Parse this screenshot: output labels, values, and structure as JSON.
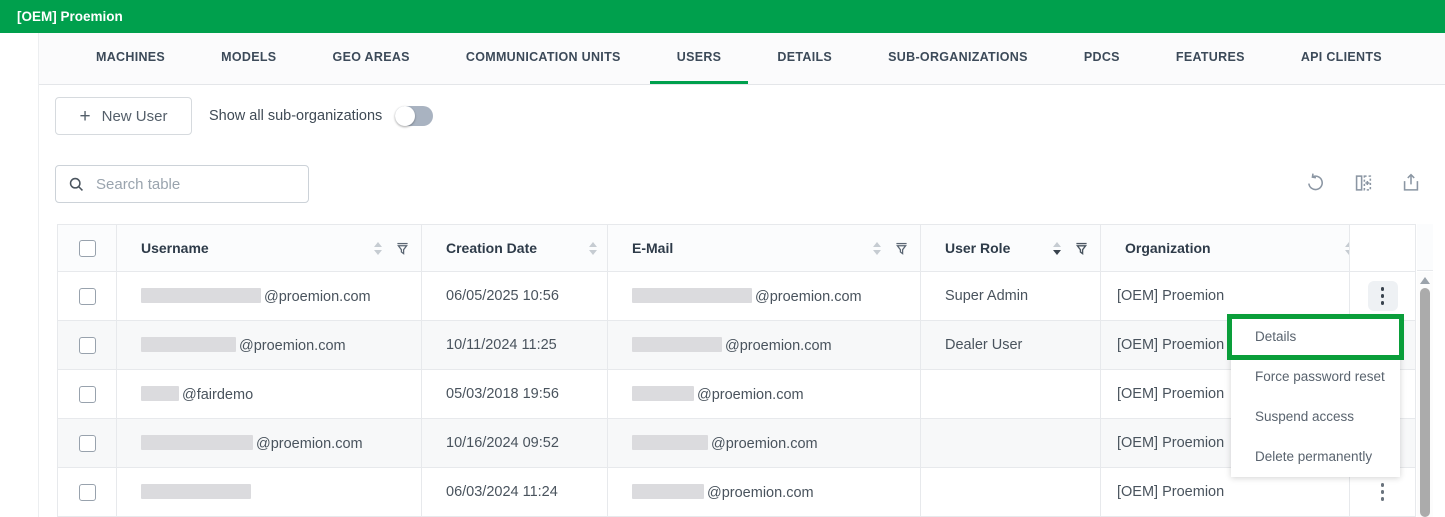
{
  "app": {
    "title": "[OEM] Proemion"
  },
  "tabs": {
    "active_index": 4,
    "items": [
      {
        "label": "MACHINES"
      },
      {
        "label": "MODELS"
      },
      {
        "label": "GEO AREAS"
      },
      {
        "label": "COMMUNICATION UNITS"
      },
      {
        "label": "USERS"
      },
      {
        "label": "DETAILS"
      },
      {
        "label": "SUB-ORGANIZATIONS"
      },
      {
        "label": "PDCS"
      },
      {
        "label": "FEATURES"
      },
      {
        "label": "API CLIENTS"
      }
    ]
  },
  "toolbar": {
    "new_user_label": "New User",
    "toggle_label": "Show all sub-organizations",
    "toggle_on": false
  },
  "search": {
    "placeholder": "Search table"
  },
  "table_tools": {
    "icons": [
      "refresh-icon",
      "manage-columns-icon",
      "export-icon"
    ]
  },
  "table": {
    "columns": [
      {
        "label": "Username",
        "sortable": true,
        "filterable": true
      },
      {
        "label": "Creation Date",
        "sortable": true,
        "filterable": false
      },
      {
        "label": "E-Mail",
        "sortable": true,
        "filterable": true
      },
      {
        "label": "User Role",
        "sortable": true,
        "filterable": true,
        "sorted": "desc"
      },
      {
        "label": "Organization",
        "sortable": true,
        "filterable": false
      }
    ],
    "rows": [
      {
        "username_redacted_width": 120,
        "username_suffix": "@proemion.com",
        "creation_date": "06/05/2025 10:56",
        "email_redacted_width": 120,
        "email_suffix": "@proemion.com",
        "user_role": "Super Admin",
        "organization": "[OEM] Proemion",
        "actions_open": true
      },
      {
        "username_redacted_width": 95,
        "username_suffix": "@proemion.com",
        "creation_date": "10/11/2024 11:25",
        "email_redacted_width": 90,
        "email_suffix": "@proemion.com",
        "user_role": "Dealer User",
        "organization": "[OEM] Proemion",
        "actions_open": false
      },
      {
        "username_redacted_width": 38,
        "username_suffix": "@fairdemo",
        "creation_date": "05/03/2018 19:56",
        "email_redacted_width": 62,
        "email_suffix": "@proemion.com",
        "user_role": "",
        "organization": "[OEM] Proemion",
        "actions_open": false
      },
      {
        "username_redacted_width": 112,
        "username_suffix": "@proemion.com",
        "creation_date": "10/16/2024 09:52",
        "email_redacted_width": 76,
        "email_suffix": "@proemion.com",
        "user_role": "",
        "organization": "[OEM] Proemion",
        "actions_open": false
      },
      {
        "username_redacted_width": 110,
        "username_suffix": "",
        "creation_date": "06/03/2024 11:24",
        "email_redacted_width": 72,
        "email_suffix": "@proemion.com",
        "user_role": "",
        "organization": "[OEM] Proemion",
        "actions_open": false
      }
    ]
  },
  "context_menu": {
    "highlighted_index": 0,
    "items": [
      {
        "label": "Details"
      },
      {
        "label": "Force password reset"
      },
      {
        "label": "Suspend access"
      },
      {
        "label": "Delete permanently"
      }
    ]
  },
  "colors": {
    "brand_green": "#00a04d",
    "annotation_green": "#0a9e3a",
    "redaction_gray": "#dbdbde"
  }
}
